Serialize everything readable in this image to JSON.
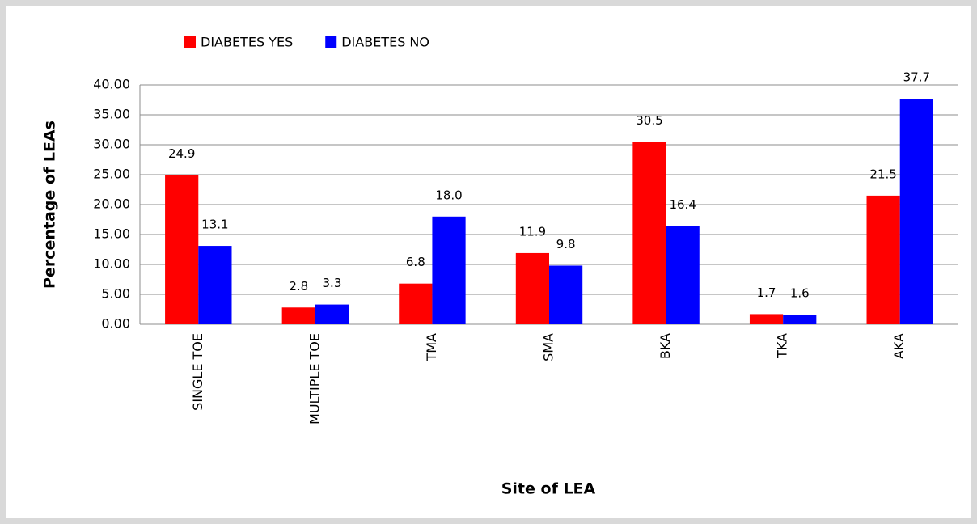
{
  "chart_data": {
    "type": "bar",
    "x_label": "Site of LEA",
    "y_label": "Percentage of LEAs",
    "categories": [
      "SINGLE TOE",
      "MULTIPLE TOE",
      "TMA",
      "SMA",
      "BKA",
      "TKA",
      "AKA"
    ],
    "series": [
      {
        "name": "DIABETES YES",
        "color": "#ff0000",
        "values": [
          24.9,
          2.8,
          6.8,
          11.9,
          30.5,
          1.7,
          21.5
        ],
        "value_labels": [
          "24.9",
          "2.8",
          "6.8",
          "11.9",
          "30.5",
          "1.7",
          "21.5"
        ]
      },
      {
        "name": "DIABETES NO",
        "color": "#0000ff",
        "values": [
          13.1,
          3.3,
          18.0,
          9.8,
          16.4,
          1.6,
          37.7
        ],
        "value_labels": [
          "13.1",
          "3.3",
          "18.0",
          "9.8",
          "16.4",
          "1.6",
          "37.7"
        ]
      }
    ],
    "ylim": [
      0,
      40
    ],
    "yticks": [
      {
        "value": 0,
        "label": "0.00"
      },
      {
        "value": 5,
        "label": "5.00"
      },
      {
        "value": 10,
        "label": "10.00"
      },
      {
        "value": 15,
        "label": "15.00"
      },
      {
        "value": 20,
        "label": "20.00"
      },
      {
        "value": 25,
        "label": "25.00"
      },
      {
        "value": 30,
        "label": "30.00"
      },
      {
        "value": 35,
        "label": "35.00"
      },
      {
        "value": 40,
        "label": "40.00"
      }
    ],
    "grid": true,
    "legend": "top"
  }
}
